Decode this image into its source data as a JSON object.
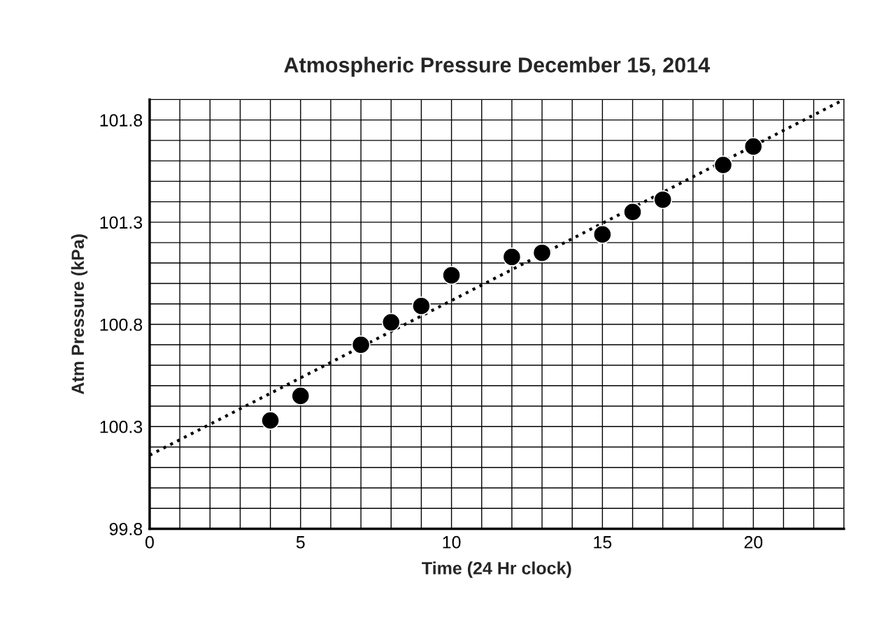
{
  "chart_data": {
    "type": "scatter",
    "title": "Atmospheric Pressure December 15, 2014",
    "xlabel": "Time (24 Hr clock)",
    "ylabel": "Atm Pressure (kPa)",
    "x": [
      4,
      5,
      7,
      8,
      9,
      10,
      12,
      13,
      15,
      16,
      17,
      19,
      20
    ],
    "series": [
      {
        "color": "#000000",
        "marker": "circle",
        "values": [
          100.33,
          100.45,
          100.7,
          100.81,
          100.89,
          101.04,
          101.13,
          101.15,
          101.24,
          101.35,
          101.41,
          101.58,
          101.67
        ]
      },
      {
        "type": "line",
        "color": "#000000",
        "line_style": "dotted",
        "marker": "none",
        "x": [
          0,
          23
        ],
        "values": [
          100.16,
          101.9
        ]
      }
    ],
    "xlim": [
      0,
      23
    ],
    "xticks": [
      0,
      {
        "value": 1,
        "label": null
      },
      {
        "value": 2,
        "label": null
      },
      {
        "value": 3,
        "label": null
      },
      {
        "value": 4,
        "label": null
      },
      5,
      {
        "value": 6,
        "label": null
      },
      {
        "value": 7,
        "label": null
      },
      {
        "value": 8,
        "label": null
      },
      {
        "value": 9,
        "label": null
      },
      10,
      {
        "value": 11,
        "label": null
      },
      {
        "value": 12,
        "label": null
      },
      {
        "value": 13,
        "label": null
      },
      {
        "value": 14,
        "label": null
      },
      15,
      {
        "value": 16,
        "label": null
      },
      {
        "value": 17,
        "label": null
      },
      {
        "value": 18,
        "label": null
      },
      {
        "value": 19,
        "label": null
      },
      20,
      {
        "value": 21,
        "label": null
      },
      {
        "value": 22,
        "label": null
      },
      {
        "value": 23,
        "label": null
      }
    ],
    "ylim": [
      99.8,
      101.9
    ],
    "yticks": [
      99.8,
      {
        "value": 99.9,
        "label": null
      },
      {
        "value": 100.0,
        "label": null
      },
      {
        "value": 100.1,
        "label": null
      },
      {
        "value": 100.2,
        "label": null
      },
      100.3,
      {
        "value": 100.4,
        "label": null
      },
      {
        "value": 100.5,
        "label": null
      },
      {
        "value": 100.6,
        "label": null
      },
      {
        "value": 100.7,
        "label": null
      },
      100.8,
      {
        "value": 100.9,
        "label": null
      },
      {
        "value": 101.0,
        "label": null
      },
      {
        "value": 101.1,
        "label": null
      },
      {
        "value": 101.2,
        "label": null
      },
      101.3,
      {
        "value": 101.4,
        "label": null
      },
      {
        "value": 101.5,
        "label": null
      },
      {
        "value": 101.6,
        "label": null
      },
      {
        "value": 101.7,
        "label": null
      },
      101.8,
      {
        "value": 101.9,
        "label": null
      }
    ],
    "grid": true,
    "legend": false
  }
}
